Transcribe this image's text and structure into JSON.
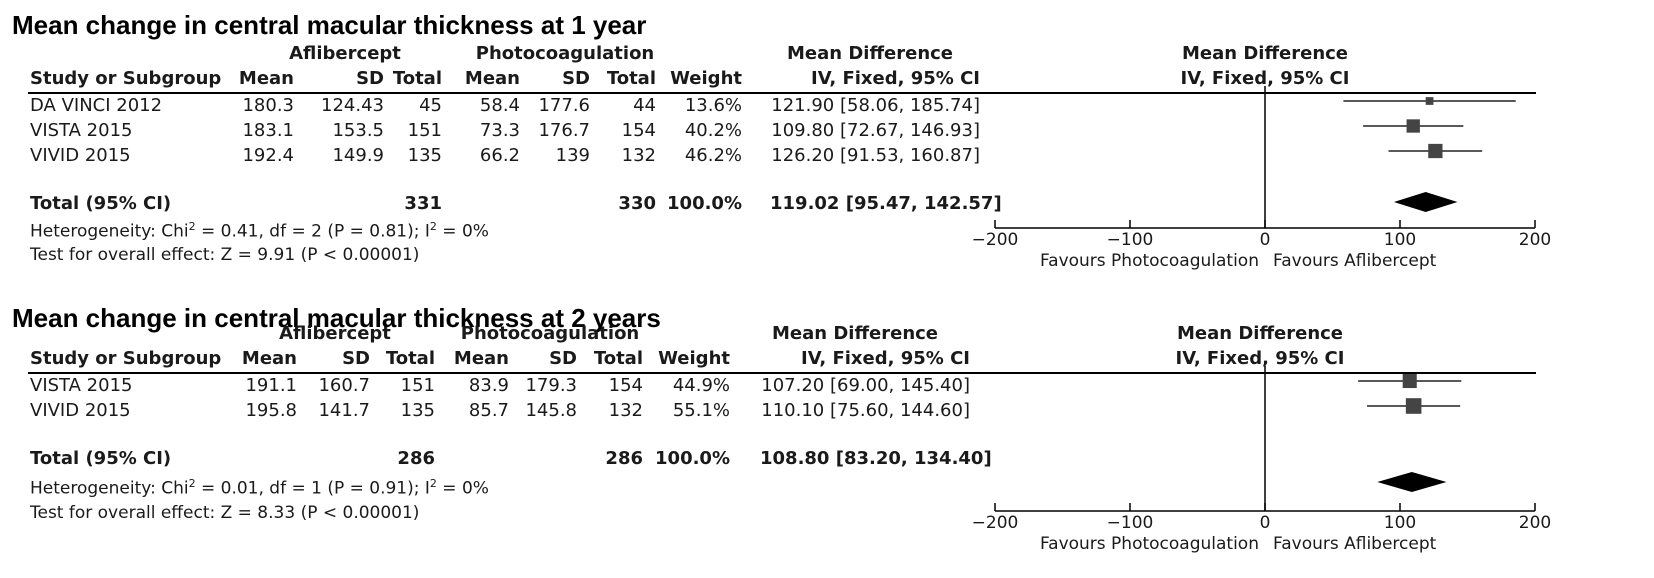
{
  "analyses": [
    {
      "title": "Mean change in central macular thickness at 1 year",
      "group1": "Aflibercept",
      "group2": "Photocoagulation",
      "effect_header": "Mean Difference",
      "method_header": "IV, Fixed, 95% CI",
      "col_study": "Study or Subgroup",
      "col_mean": "Mean",
      "col_sd": "SD",
      "col_total": "Total",
      "col_weight": "Weight",
      "studies": [
        {
          "name": "DA VINCI 2012",
          "m1": "180.3",
          "sd1": "124.43",
          "n1": "45",
          "m2": "58.4",
          "sd2": "177.6",
          "n2": "44",
          "weight": "13.6%",
          "ci": "121.90 [58.06, 185.74]"
        },
        {
          "name": "VISTA 2015",
          "m1": "183.1",
          "sd1": "153.5",
          "n1": "151",
          "m2": "73.3",
          "sd2": "176.7",
          "n2": "154",
          "weight": "40.2%",
          "ci": "109.80 [72.67, 146.93]"
        },
        {
          "name": "VIVID 2015",
          "m1": "192.4",
          "sd1": "149.9",
          "n1": "135",
          "m2": "66.2",
          "sd2": "139",
          "n2": "132",
          "weight": "46.2%",
          "ci": "126.20 [91.53, 160.87]"
        }
      ],
      "total": {
        "label": "Total (95% CI)",
        "n1": "331",
        "n2": "330",
        "weight": "100.0%",
        "ci": "119.02 [95.47, 142.57]"
      },
      "heterogeneity": {
        "prefix": "Heterogeneity: Chi",
        "sup": "2",
        "mid": " = 0.41, df = 2 (P = 0.81); I",
        "sup2": "2",
        "suffix": " = 0%"
      },
      "overall": "Test for overall effect: Z = 9.91 (P < 0.00001)",
      "favours_left": "Favours Photocoagulation",
      "favours_right": "Favours Aflibercept"
    },
    {
      "title": "Mean change in central macular thickness at 2 years",
      "group1": "Aflibercept",
      "group2": "Photocoagulation",
      "effect_header": "Mean Difference",
      "method_header": "IV, Fixed, 95% CI",
      "col_study": "Study or Subgroup",
      "col_mean": "Mean",
      "col_sd": "SD",
      "col_total": "Total",
      "col_weight": "Weight",
      "studies": [
        {
          "name": "VISTA 2015",
          "m1": "191.1",
          "sd1": "160.7",
          "n1": "151",
          "m2": "83.9",
          "sd2": "179.3",
          "n2": "154",
          "weight": "44.9%",
          "ci": "107.20 [69.00, 145.40]"
        },
        {
          "name": "VIVID 2015",
          "m1": "195.8",
          "sd1": "141.7",
          "n1": "135",
          "m2": "85.7",
          "sd2": "145.8",
          "n2": "132",
          "weight": "55.1%",
          "ci": "110.10 [75.60, 144.60]"
        }
      ],
      "total": {
        "label": "Total (95% CI)",
        "n1": "286",
        "n2": "286",
        "weight": "100.0%",
        "ci": "108.80 [83.20, 134.40]"
      },
      "heterogeneity": {
        "prefix": "Heterogeneity: Chi",
        "sup": "2",
        "mid": " = 0.01, df = 1 (P = 0.91); I",
        "sup2": "2",
        "suffix": " = 0%"
      },
      "overall": "Test for overall effect: Z = 8.33 (P < 0.00001)",
      "favours_left": "Favours Photocoagulation",
      "favours_right": "Favours Aflibercept"
    }
  ],
  "chart_data": [
    {
      "type": "forest",
      "xlim": [
        -200,
        200
      ],
      "ticks": [
        -200,
        -100,
        0,
        100,
        200
      ],
      "tick_labels": [
        "-200",
        "-100",
        "0",
        "100",
        "200"
      ],
      "studies": [
        {
          "name": "DA VINCI 2012",
          "estimate": 121.9,
          "lower": 58.06,
          "upper": 185.74,
          "weight": 13.6
        },
        {
          "name": "VISTA 2015",
          "estimate": 109.8,
          "lower": 72.67,
          "upper": 146.93,
          "weight": 40.2
        },
        {
          "name": "VIVID 2015",
          "estimate": 126.2,
          "lower": 91.53,
          "upper": 160.87,
          "weight": 46.2
        }
      ],
      "pooled": {
        "estimate": 119.02,
        "lower": 95.47,
        "upper": 142.57
      },
      "marker_color": "#444444",
      "diamond_color": "#000000"
    },
    {
      "type": "forest",
      "xlim": [
        -200,
        200
      ],
      "ticks": [
        -200,
        -100,
        0,
        100,
        200
      ],
      "tick_labels": [
        "-200",
        "-100",
        "0",
        "100",
        "200"
      ],
      "studies": [
        {
          "name": "VISTA 2015",
          "estimate": 107.2,
          "lower": 69.0,
          "upper": 145.4,
          "weight": 44.9
        },
        {
          "name": "VIVID 2015",
          "estimate": 110.1,
          "lower": 75.6,
          "upper": 144.6,
          "weight": 55.1
        }
      ],
      "pooled": {
        "estimate": 108.8,
        "lower": 83.2,
        "upper": 134.4
      },
      "marker_color": "#444444",
      "diamond_color": "#000000"
    }
  ]
}
